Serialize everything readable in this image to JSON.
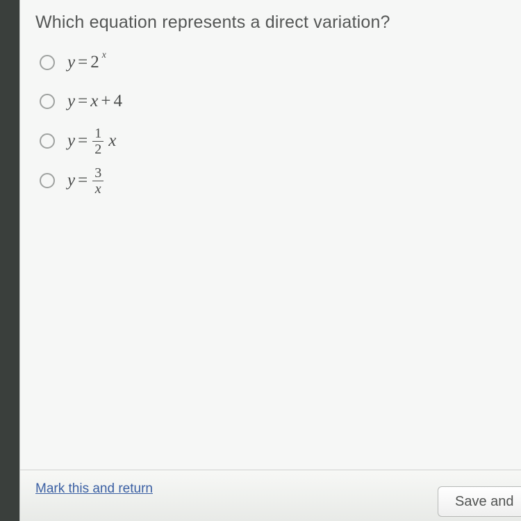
{
  "question": "Which equation represents a direct variation?",
  "options": [
    {
      "lhs": "y",
      "type": "power",
      "base": "2",
      "exp": "x"
    },
    {
      "lhs": "y",
      "type": "sum",
      "a": "x",
      "op": "+",
      "b": "4"
    },
    {
      "lhs": "y",
      "type": "frac_times",
      "num": "1",
      "den": "2",
      "tail": "x"
    },
    {
      "lhs": "y",
      "type": "frac",
      "num": "3",
      "den": "x"
    }
  ],
  "footer": {
    "mark_link": "Mark this and return",
    "save_button": "Save and"
  },
  "colors": {
    "page_bg": "#3a3f3c",
    "panel_bg": "#f6f7f6",
    "text": "#4a4c4b",
    "radio_border": "#9ea19f",
    "link": "#3a5fa3",
    "divider": "#cfd1cf"
  }
}
